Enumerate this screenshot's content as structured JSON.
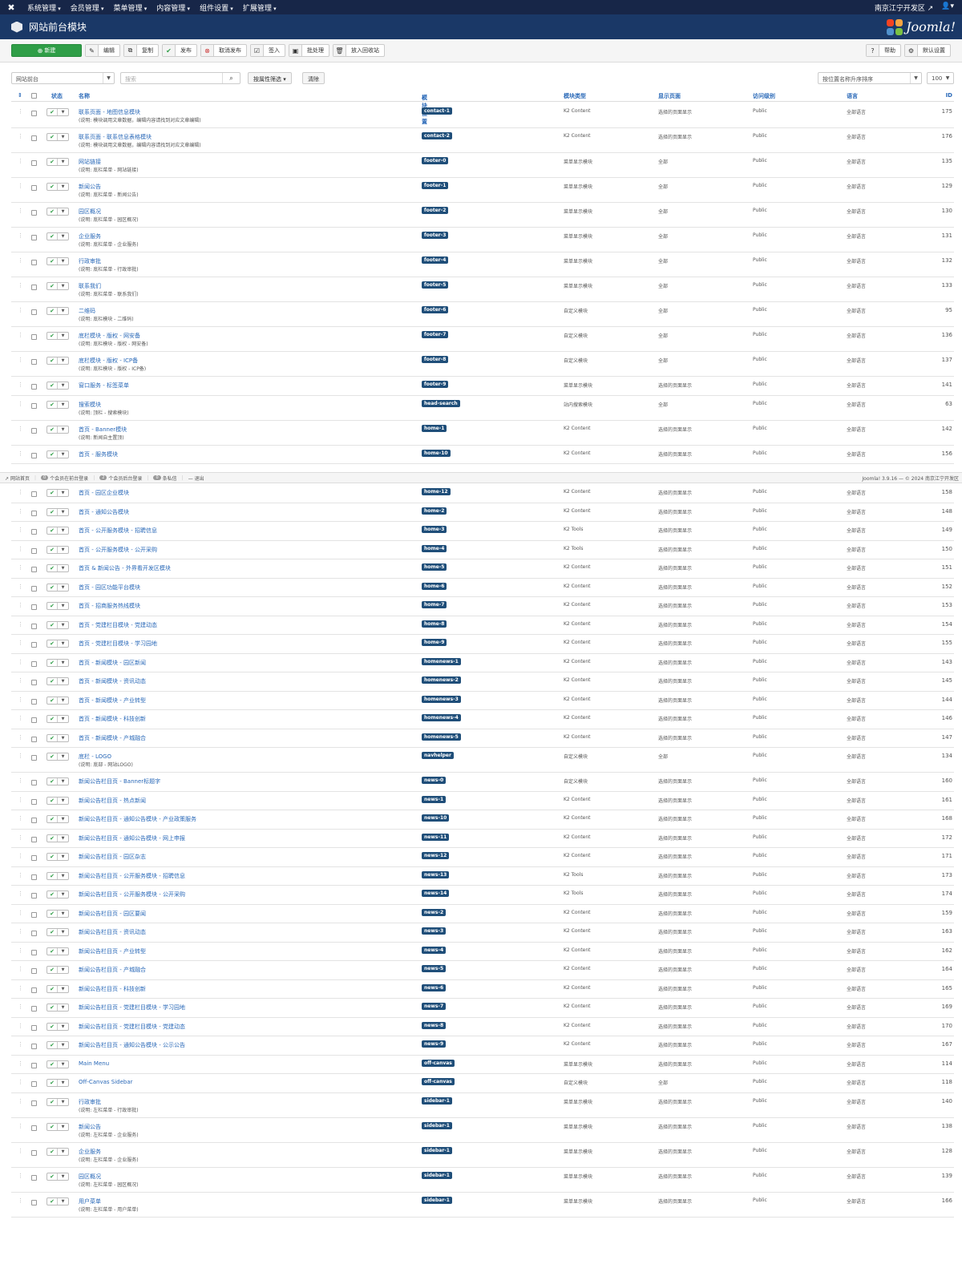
{
  "navbar": {
    "menus": [
      "系统管理",
      "会员管理",
      "菜单管理",
      "内容管理",
      "组件设置",
      "扩展管理"
    ],
    "site_name": "南京江宁开发区"
  },
  "header": {
    "title": "网站前台模块",
    "brand": "Joomla!"
  },
  "toolbar": {
    "new": "新建",
    "edit": "编辑",
    "copy": "复制",
    "publish": "发布",
    "unpublish": "取消发布",
    "checkin": "签入",
    "batch": "批处理",
    "trash": "放入回收站",
    "help": "帮助",
    "options": "默认设置"
  },
  "filters": {
    "client": "网站前台",
    "search_placeholder": "搜索",
    "filter_options": "按属性筛选",
    "clear": "清除",
    "ordering": "按位置名称升序排序",
    "limit": "100"
  },
  "columns": {
    "status": "状态",
    "title": "名称",
    "position": "模块位置",
    "type": "模块类型",
    "pages": "显示页面",
    "access": "访问级别",
    "language": "语言",
    "id": "ID"
  },
  "status_bar": {
    "view_site": "网站首页",
    "frontend_count": "0",
    "frontend_label": "个会员在前台登录",
    "backend_count": "2",
    "backend_label": "个会员后台登录",
    "messages_count": "0",
    "messages_label": "条私信",
    "logout": "退出",
    "copyright": "Joomla! 3.9.16 — © 2024 南京江宁开发区"
  },
  "rows": [
    {
      "title": "联系页面 - 地图信息模块",
      "note": "(说明: 模块调用文章数据，编辑内容请找到对应文章编辑)",
      "position": "contact-1",
      "type": "K2 Content",
      "pages": "选择的页面显示",
      "access": "Public",
      "language": "全部语言",
      "id": "175"
    },
    {
      "title": "联系页面 - 联系信息表格模块",
      "note": "(说明: 模块调用文章数据，编辑内容请找到对应文章编辑)",
      "position": "contact-2",
      "type": "K2 Content",
      "pages": "选择的页面显示",
      "access": "Public",
      "language": "全部语言",
      "id": "176"
    },
    {
      "title": "网站链接",
      "note": "(说明: 底栏菜单 - 网站链接)",
      "position": "footer-0",
      "type": "菜单显示模块",
      "pages": "全部",
      "access": "Public",
      "language": "全部语言",
      "id": "135"
    },
    {
      "title": "新闻公告",
      "note": "(说明: 底栏菜单 - 新闻公告)",
      "position": "footer-1",
      "type": "菜单显示模块",
      "pages": "全部",
      "access": "Public",
      "language": "全部语言",
      "id": "129"
    },
    {
      "title": "园区概况",
      "note": "(说明: 底栏菜单 - 园区概况)",
      "position": "footer-2",
      "type": "菜单显示模块",
      "pages": "全部",
      "access": "Public",
      "language": "全部语言",
      "id": "130"
    },
    {
      "title": "企业服务",
      "note": "(说明: 底栏菜单 - 企业服务)",
      "position": "footer-3",
      "type": "菜单显示模块",
      "pages": "全部",
      "access": "Public",
      "language": "全部语言",
      "id": "131"
    },
    {
      "title": "行政审批",
      "note": "(说明: 底栏菜单 - 行政审批)",
      "position": "footer-4",
      "type": "菜单显示模块",
      "pages": "全部",
      "access": "Public",
      "language": "全部语言",
      "id": "132"
    },
    {
      "title": "联系我们",
      "note": "(说明: 底栏菜单 - 联系我们)",
      "position": "footer-5",
      "type": "菜单显示模块",
      "pages": "全部",
      "access": "Public",
      "language": "全部语言",
      "id": "133"
    },
    {
      "title": "二维码",
      "note": "(说明: 底栏模块 - 二维码)",
      "position": "footer-6",
      "type": "自定义模块",
      "pages": "全部",
      "access": "Public",
      "language": "全部语言",
      "id": "95"
    },
    {
      "title": "底栏模块 - 版权 - 网安备",
      "note": "(说明: 底栏模块 - 版权 - 网安备)",
      "position": "footer-7",
      "type": "自定义模块",
      "pages": "全部",
      "access": "Public",
      "language": "全部语言",
      "id": "136"
    },
    {
      "title": "底栏模块 - 版权 - ICP备",
      "note": "(说明: 底栏模块 - 版权 - ICP备)",
      "position": "footer-8",
      "type": "自定义模块",
      "pages": "全部",
      "access": "Public",
      "language": "全部语言",
      "id": "137"
    },
    {
      "title": "窗口服务 - 标签菜单",
      "note": "",
      "position": "footer-9",
      "type": "菜单显示模块",
      "pages": "选择的页面显示",
      "access": "Public",
      "language": "全部语言",
      "id": "141"
    },
    {
      "title": "搜索模块",
      "note": "(说明: 顶栏 - 搜索模块)",
      "position": "head-search",
      "type": "站内搜索模块",
      "pages": "全部",
      "access": "Public",
      "language": "全部语言",
      "id": "63"
    },
    {
      "title": "首页 - Banner模块",
      "note": "(说明: 新闻自主置顶)",
      "position": "home-1",
      "type": "K2 Content",
      "pages": "选择的页面显示",
      "access": "Public",
      "language": "全部语言",
      "id": "142"
    },
    {
      "title": "首页 - 服务模块",
      "note": "",
      "position": "home-10",
      "type": "K2 Content",
      "pages": "选择的页面显示",
      "access": "Public",
      "language": "全部语言",
      "id": "156"
    },
    {
      "title": "首页 - 园区企业模块",
      "note": "",
      "position": "home-12",
      "type": "K2 Content",
      "pages": "选择的页面显示",
      "access": "Public",
      "language": "全部语言",
      "id": "158"
    },
    {
      "title": "首页 - 通知公告模块",
      "note": "",
      "position": "home-2",
      "type": "K2 Content",
      "pages": "选择的页面显示",
      "access": "Public",
      "language": "全部语言",
      "id": "148"
    },
    {
      "title": "首页 - 公开服务模块 - 招聘信息",
      "note": "",
      "position": "home-3",
      "type": "K2 Tools",
      "pages": "选择的页面显示",
      "access": "Public",
      "language": "全部语言",
      "id": "149"
    },
    {
      "title": "首页 - 公开服务模块 - 公开采购",
      "note": "",
      "position": "home-4",
      "type": "K2 Tools",
      "pages": "选择的页面显示",
      "access": "Public",
      "language": "全部语言",
      "id": "150"
    },
    {
      "title": "首页 & 新闻公告 - 外界看开发区模块",
      "note": "",
      "position": "home-5",
      "type": "K2 Content",
      "pages": "选择的页面显示",
      "access": "Public",
      "language": "全部语言",
      "id": "151"
    },
    {
      "title": "首页 - 园区功能平台模块",
      "note": "",
      "position": "home-6",
      "type": "K2 Content",
      "pages": "选择的页面显示",
      "access": "Public",
      "language": "全部语言",
      "id": "152"
    },
    {
      "title": "首页 - 招商服务热线模块",
      "note": "",
      "position": "home-7",
      "type": "K2 Content",
      "pages": "选择的页面显示",
      "access": "Public",
      "language": "全部语言",
      "id": "153"
    },
    {
      "title": "首页 - 党建栏目模块 - 党建动态",
      "note": "",
      "position": "home-8",
      "type": "K2 Content",
      "pages": "选择的页面显示",
      "access": "Public",
      "language": "全部语言",
      "id": "154"
    },
    {
      "title": "首页 - 党建栏目模块 - 学习园地",
      "note": "",
      "position": "home-9",
      "type": "K2 Content",
      "pages": "选择的页面显示",
      "access": "Public",
      "language": "全部语言",
      "id": "155"
    },
    {
      "title": "首页 - 新闻模块 - 园区新闻",
      "note": "",
      "position": "homenews-1",
      "type": "K2 Content",
      "pages": "选择的页面显示",
      "access": "Public",
      "language": "全部语言",
      "id": "143"
    },
    {
      "title": "首页 - 新闻模块 - 资讯动态",
      "note": "",
      "position": "homenews-2",
      "type": "K2 Content",
      "pages": "选择的页面显示",
      "access": "Public",
      "language": "全部语言",
      "id": "145"
    },
    {
      "title": "首页 - 新闻模块 - 产业转型",
      "note": "",
      "position": "homenews-3",
      "type": "K2 Content",
      "pages": "选择的页面显示",
      "access": "Public",
      "language": "全部语言",
      "id": "144"
    },
    {
      "title": "首页 - 新闻模块 - 科技创新",
      "note": "",
      "position": "homenews-4",
      "type": "K2 Content",
      "pages": "选择的页面显示",
      "access": "Public",
      "language": "全部语言",
      "id": "146"
    },
    {
      "title": "首页 - 新闻模块 - 产城融合",
      "note": "",
      "position": "homenews-5",
      "type": "K2 Content",
      "pages": "选择的页面显示",
      "access": "Public",
      "language": "全部语言",
      "id": "147"
    },
    {
      "title": "底栏 - LOGO",
      "note": "(说明: 底部 - 网站LOGO)",
      "position": "navhelper",
      "type": "自定义模块",
      "pages": "全部",
      "access": "Public",
      "language": "全部语言",
      "id": "134"
    },
    {
      "title": "新闻公告栏目页 - Banner标题字",
      "note": "",
      "position": "news-0",
      "type": "自定义模块",
      "pages": "选择的页面显示",
      "access": "Public",
      "language": "全部语言",
      "id": "160"
    },
    {
      "title": "新闻公告栏目页 - 热点新闻",
      "note": "",
      "position": "news-1",
      "type": "K2 Content",
      "pages": "选择的页面显示",
      "access": "Public",
      "language": "全部语言",
      "id": "161"
    },
    {
      "title": "新闻公告栏目页 - 通知公告模块 - 产业政策服务",
      "note": "",
      "position": "news-10",
      "type": "K2 Content",
      "pages": "选择的页面显示",
      "access": "Public",
      "language": "全部语言",
      "id": "168"
    },
    {
      "title": "新闻公告栏目页 - 通知公告模块 - 网上申报",
      "note": "",
      "position": "news-11",
      "type": "K2 Content",
      "pages": "选择的页面显示",
      "access": "Public",
      "language": "全部语言",
      "id": "172"
    },
    {
      "title": "新闻公告栏目页 - 园区杂志",
      "note": "",
      "position": "news-12",
      "type": "K2 Content",
      "pages": "选择的页面显示",
      "access": "Public",
      "language": "全部语言",
      "id": "171"
    },
    {
      "title": "新闻公告栏目页 - 公开服务模块 - 招聘信息",
      "note": "",
      "position": "news-13",
      "type": "K2 Tools",
      "pages": "选择的页面显示",
      "access": "Public",
      "language": "全部语言",
      "id": "173"
    },
    {
      "title": "新闻公告栏目页 - 公开服务模块 - 公开采购",
      "note": "",
      "position": "news-14",
      "type": "K2 Tools",
      "pages": "选择的页面显示",
      "access": "Public",
      "language": "全部语言",
      "id": "174"
    },
    {
      "title": "新闻公告栏目页 - 园区要闻",
      "note": "",
      "position": "news-2",
      "type": "K2 Content",
      "pages": "选择的页面显示",
      "access": "Public",
      "language": "全部语言",
      "id": "159"
    },
    {
      "title": "新闻公告栏目页 - 资讯动态",
      "note": "",
      "position": "news-3",
      "type": "K2 Content",
      "pages": "选择的页面显示",
      "access": "Public",
      "language": "全部语言",
      "id": "163"
    },
    {
      "title": "新闻公告栏目页 - 产业转型",
      "note": "",
      "position": "news-4",
      "type": "K2 Content",
      "pages": "选择的页面显示",
      "access": "Public",
      "language": "全部语言",
      "id": "162"
    },
    {
      "title": "新闻公告栏目页 - 产城融合",
      "note": "",
      "position": "news-5",
      "type": "K2 Content",
      "pages": "选择的页面显示",
      "access": "Public",
      "language": "全部语言",
      "id": "164"
    },
    {
      "title": "新闻公告栏目页 - 科技创新",
      "note": "",
      "position": "news-6",
      "type": "K2 Content",
      "pages": "选择的页面显示",
      "access": "Public",
      "language": "全部语言",
      "id": "165"
    },
    {
      "title": "新闻公告栏目页 - 党建栏目模块 - 学习园地",
      "note": "",
      "position": "news-7",
      "type": "K2 Content",
      "pages": "选择的页面显示",
      "access": "Public",
      "language": "全部语言",
      "id": "169"
    },
    {
      "title": "新闻公告栏目页 - 党建栏目模块 - 党建动态",
      "note": "",
      "position": "news-8",
      "type": "K2 Content",
      "pages": "选择的页面显示",
      "access": "Public",
      "language": "全部语言",
      "id": "170"
    },
    {
      "title": "新闻公告栏目页 - 通知公告模块 - 公示公告",
      "note": "",
      "position": "news-9",
      "type": "K2 Content",
      "pages": "选择的页面显示",
      "access": "Public",
      "language": "全部语言",
      "id": "167"
    },
    {
      "title": "Main Menu",
      "note": "",
      "position": "off-canvas",
      "type": "菜单显示模块",
      "pages": "选择的页面显示",
      "access": "Public",
      "language": "全部语言",
      "id": "114"
    },
    {
      "title": "Off-Canvas Sidebar",
      "note": "",
      "position": "off-canvas",
      "type": "自定义模块",
      "pages": "全部",
      "access": "Public",
      "language": "全部语言",
      "id": "118"
    },
    {
      "title": "行政审批",
      "note": "(说明: 左栏菜单 - 行政审批)",
      "position": "sidebar-1",
      "type": "菜单显示模块",
      "pages": "选择的页面显示",
      "access": "Public",
      "language": "全部语言",
      "id": "140"
    },
    {
      "title": "新闻公告",
      "note": "(说明: 左栏菜单 - 企业服务)",
      "position": "sidebar-1",
      "type": "菜单显示模块",
      "pages": "选择的页面显示",
      "access": "Public",
      "language": "全部语言",
      "id": "138"
    },
    {
      "title": "企业服务",
      "note": "(说明: 左栏菜单 - 企业服务)",
      "position": "sidebar-1",
      "type": "菜单显示模块",
      "pages": "选择的页面显示",
      "access": "Public",
      "language": "全部语言",
      "id": "128"
    },
    {
      "title": "园区概况",
      "note": "(说明: 左栏菜单 - 园区概况)",
      "position": "sidebar-1",
      "type": "菜单显示模块",
      "pages": "选择的页面显示",
      "access": "Public",
      "language": "全部语言",
      "id": "139"
    },
    {
      "title": "用户菜单",
      "note": "(说明: 左栏菜单 - 用户菜单)",
      "position": "sidebar-1",
      "type": "菜单显示模块",
      "pages": "选择的页面显示",
      "access": "Public",
      "language": "全部语言",
      "id": "166"
    }
  ]
}
